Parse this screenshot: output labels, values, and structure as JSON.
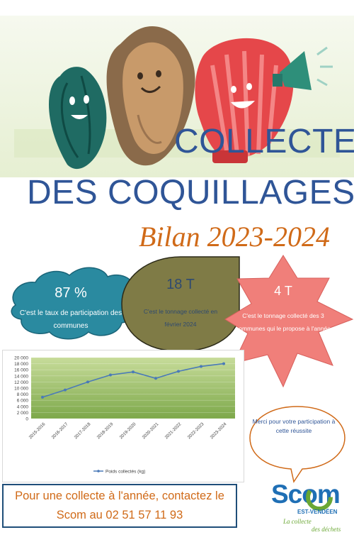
{
  "header": {
    "title_line1": "COLLECTE",
    "title_line2": "DES COQUILLAGES",
    "subtitle": "Bilan 2023-2024"
  },
  "illustration": {
    "icons": [
      "mussel-icon",
      "oyster-icon",
      "scallop-icon",
      "megaphone-icon"
    ]
  },
  "stats": [
    {
      "value": "87 %",
      "caption": "C'est le taux de participation des communes"
    },
    {
      "value": "18 T",
      "caption": "C'est le tonnage collecté en février 2024"
    },
    {
      "value": "4 T",
      "caption": "C'est le tonnage collecté des 3 communes qui le propose à l'année"
    }
  ],
  "thanks": "Merci pour votre participation à cette réussite",
  "contact": {
    "line1": "Pour une collecte à l'année, contactez le",
    "line2": "Scom au 02 51 57 11 93"
  },
  "logo": {
    "name": "Scom",
    "sub": "EST-VENDÉEN",
    "tagline1": "La collecte",
    "tagline2": "des déchets"
  },
  "colors": {
    "title_blue": "#2f5597",
    "orange": "#d06a18",
    "teal_cloud": "#2a8aa0",
    "olive": "#7f7b46",
    "salmon_star": "#f07f7a"
  },
  "chart_data": {
    "type": "line",
    "categories": [
      "2015-2016",
      "2016-2017",
      "2017-2018",
      "2018-2019",
      "2019-2020",
      "2020-2021",
      "2021-2022",
      "2022-2023",
      "2023-2024"
    ],
    "series": [
      {
        "name": "Poids collectés (kg)",
        "values": [
          7000,
          9400,
          12000,
          14300,
          15300,
          13200,
          15500,
          17100,
          18000
        ]
      }
    ],
    "yticks": [
      "0",
      "2 000",
      "4 000",
      "6 000",
      "8 000",
      "10 000",
      "12 000",
      "14 000",
      "16 000",
      "18 000",
      "20 000"
    ],
    "ylim": [
      0,
      20000
    ],
    "legend": "bottom",
    "legend_label": "Poids collectés (kg)"
  }
}
